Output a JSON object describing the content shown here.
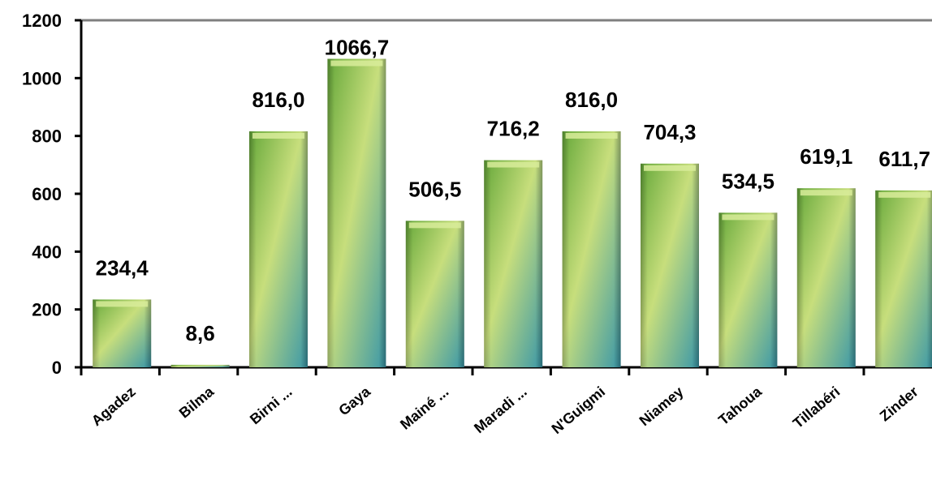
{
  "chart_data": {
    "type": "bar",
    "categories": [
      "Agadez",
      "Bilma",
      "Birni ...",
      "Gaya",
      "Mainé ...",
      "Maradi ...",
      "N'Guigmi",
      "Niamey",
      "Tahoua",
      "Tillabéri",
      "Zinder"
    ],
    "values": [
      234.4,
      8.6,
      816.0,
      1066.7,
      506.5,
      716.2,
      816.0,
      704.3,
      534.5,
      619.1,
      611.7
    ],
    "data_labels": [
      "234,4",
      "8,6",
      "816,0",
      "1066,7",
      "506,5",
      "716,2",
      "816,0",
      "704,3",
      "534,5",
      "619,1",
      "611,7"
    ],
    "yticks": [
      0,
      200,
      400,
      600,
      800,
      1000,
      1200
    ],
    "ylim": [
      0,
      1200
    ],
    "grid": false,
    "legend": "none",
    "colors": {
      "bar_top": "#6fae3c",
      "bar_mid": "#c9df7a",
      "bar_bottom": "#3c9aa6",
      "axis": "#000000",
      "top_line": "#7f7f7f"
    }
  }
}
